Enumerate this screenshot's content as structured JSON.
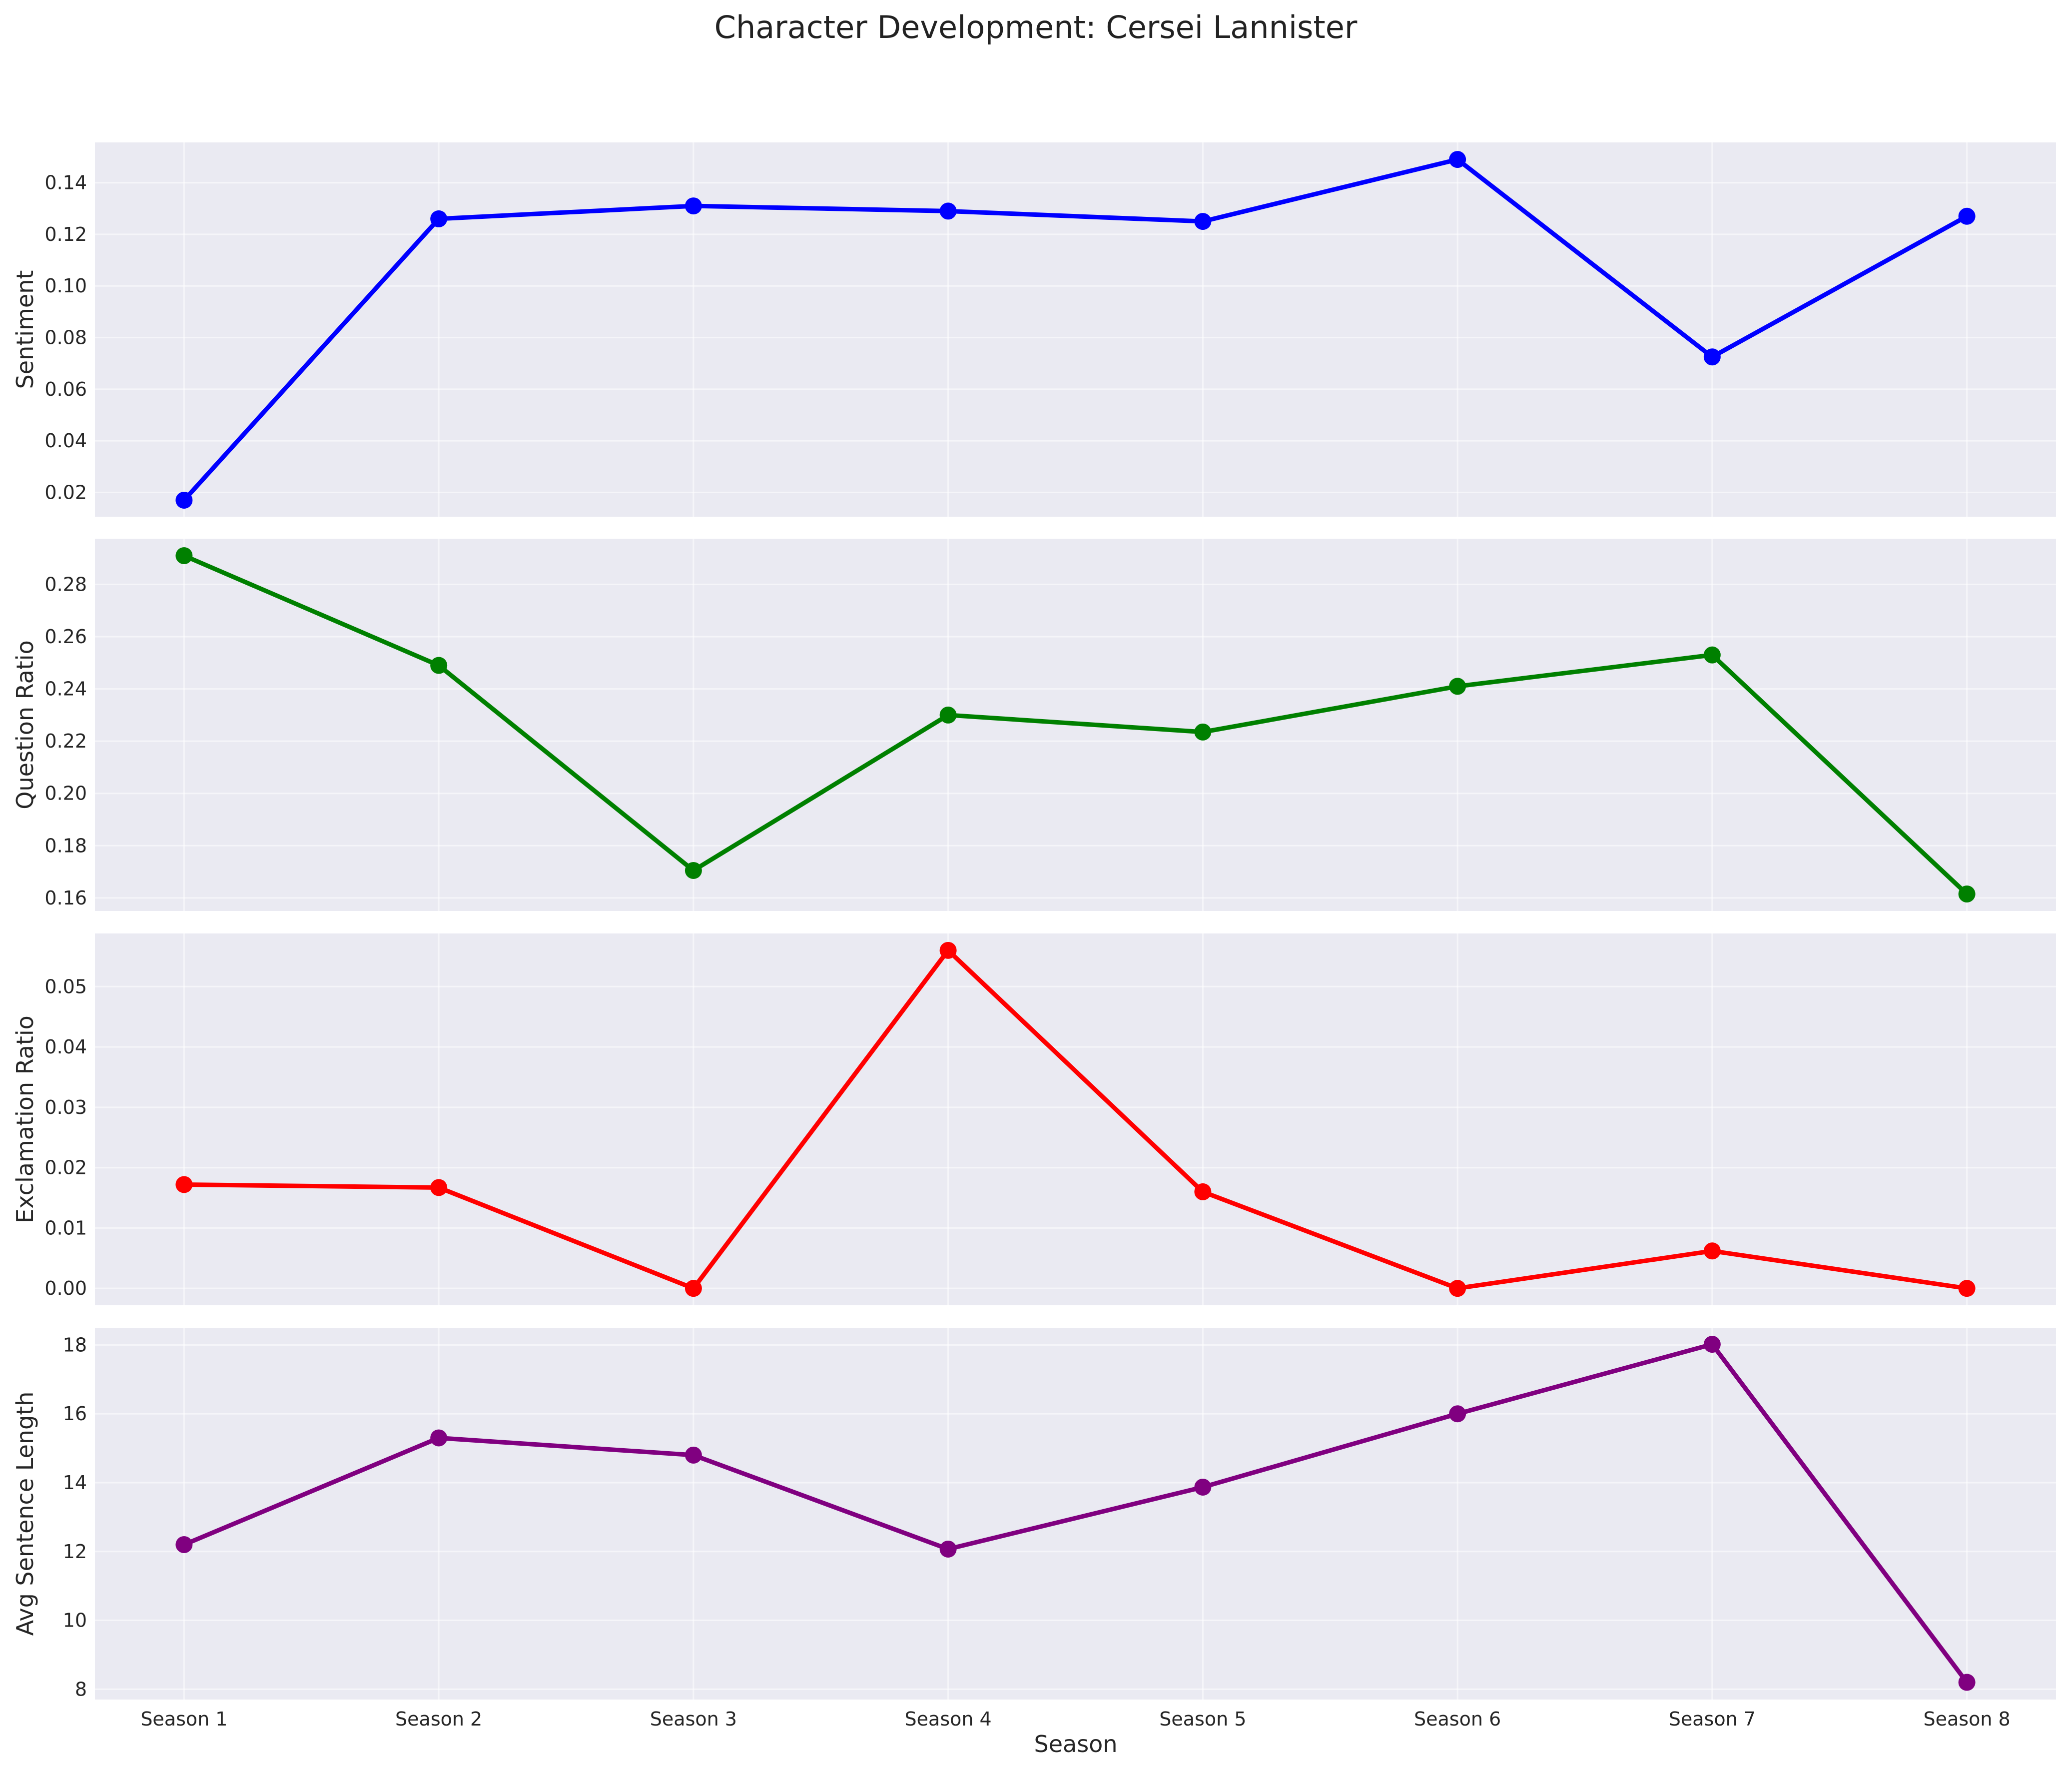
{
  "chart_data": {
    "type": "line",
    "title": "Character Development: Cersei Lannister",
    "xlabel": "Season",
    "categories": [
      "Season 1",
      "Season 2",
      "Season 3",
      "Season 4",
      "Season 5",
      "Season 6",
      "Season 7",
      "Season 8"
    ],
    "grid": true,
    "panels": [
      {
        "ylabel": "Sentiment",
        "color": "#0000ff",
        "ylim": [
          0.0106,
          0.1556
        ],
        "yticks": [
          0.02,
          0.04,
          0.06,
          0.08,
          0.1,
          0.12,
          0.14
        ],
        "ytick_labels": [
          "0.02",
          "0.04",
          "0.06",
          "0.08",
          "0.10",
          "0.12",
          "0.14"
        ],
        "values": [
          0.017,
          0.126,
          0.131,
          0.129,
          0.125,
          0.149,
          0.0725,
          0.127
        ]
      },
      {
        "ylabel": "Question Ratio",
        "color": "#008000",
        "ylim": [
          0.155,
          0.2975
        ],
        "yticks": [
          0.16,
          0.18,
          0.2,
          0.22,
          0.24,
          0.26,
          0.28
        ],
        "ytick_labels": [
          "0.16",
          "0.18",
          "0.20",
          "0.22",
          "0.24",
          "0.26",
          "0.28"
        ],
        "values": [
          0.291,
          0.249,
          0.1705,
          0.23,
          0.2235,
          0.241,
          0.253,
          0.1615
        ]
      },
      {
        "ylabel": "Exclamation Ratio",
        "color": "#ff0000",
        "ylim": [
          -0.0028,
          0.0588
        ],
        "yticks": [
          0.0,
          0.01,
          0.02,
          0.03,
          0.04,
          0.05
        ],
        "ytick_labels": [
          "0.00",
          "0.01",
          "0.02",
          "0.03",
          "0.04",
          "0.05"
        ],
        "values": [
          0.0172,
          0.0167,
          0.0,
          0.056,
          0.016,
          0.0,
          0.0062,
          0.0
        ]
      },
      {
        "ylabel": "Avg Sentence Length",
        "color": "#800080",
        "ylim": [
          7.7,
          18.5
        ],
        "yticks": [
          8,
          10,
          12,
          14,
          16,
          18
        ],
        "ytick_labels": [
          "8",
          "10",
          "12",
          "14",
          "16",
          "18"
        ],
        "values": [
          12.2,
          15.3,
          14.8,
          12.07,
          13.87,
          16.0,
          18.02,
          8.2
        ]
      }
    ]
  }
}
